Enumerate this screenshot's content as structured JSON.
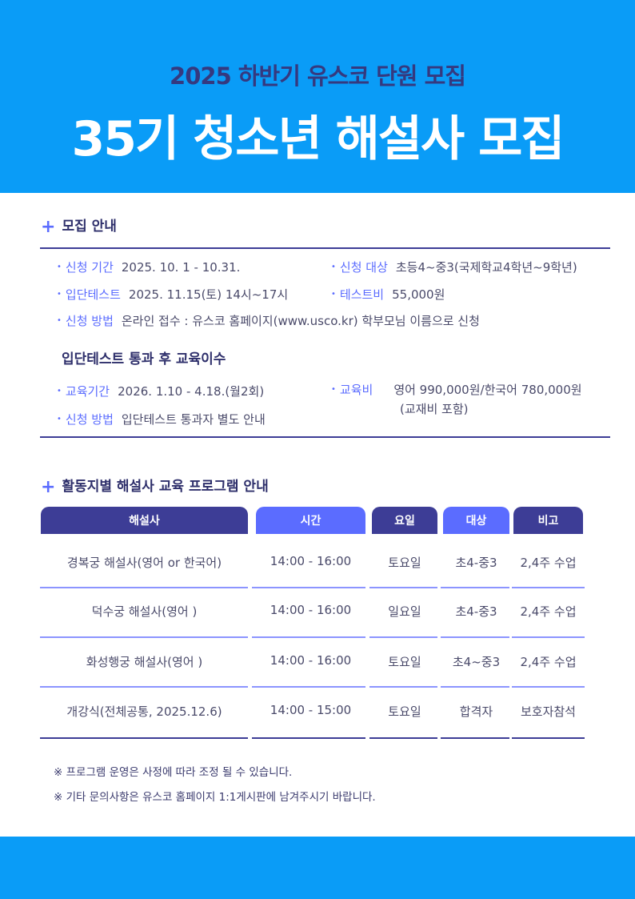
{
  "header": {
    "subtitle": "2025 하반기  유스코 단원 모집",
    "title": "35기 청소년 해설사 모집"
  },
  "recruit": {
    "heading": "모집 안내",
    "items": [
      {
        "label": "신청 기간",
        "value": "2025. 10. 1 - 10.31."
      },
      {
        "label": "신청 대상",
        "value": "초등4~중3(국제학교4학년~9학년)"
      },
      {
        "label": "입단테스트",
        "value": "2025. 11.15(토) 14시~17시"
      },
      {
        "label": "테스트비",
        "value": "55,000원"
      },
      {
        "label": "신청 방법",
        "value": "온라인 접수 : 유스코 홈페이지(www.usco.kr) 학부모님 이름으로 신청"
      }
    ],
    "sub_heading": "입단테스트 통과 후 교육이수",
    "edu": [
      {
        "label": "교육기간",
        "value": "2026. 1.10 - 4.18.(월2회)"
      },
      {
        "label": "교육비",
        "value": "영어 990,000원/한국어 780,000원",
        "value2": "(교재비 포함)"
      },
      {
        "label": "신청 방법",
        "value": "입단테스트 통과자 별도 안내"
      }
    ]
  },
  "program": {
    "heading": "활동지별 해설사 교육 프로그램 안내",
    "columns": [
      "해설사",
      "시간",
      "요일",
      "대상",
      "비고"
    ],
    "rows": [
      [
        "경복궁 해설사(영어 or 한국어)",
        "14:00 - 16:00",
        "토요일",
        "초4-중3",
        "2,4주 수업"
      ],
      [
        "덕수궁 해설사(영어 )",
        "14:00 - 16:00",
        "일요일",
        "초4-중3",
        "2,4주 수업"
      ],
      [
        "화성행궁 해설사(영어 )",
        "14:00 - 16:00",
        "토요일",
        "초4~중3",
        "2,4주 수업"
      ],
      [
        "개강식(전체공통, 2025.12.6)",
        "14:00 - 15:00",
        "토요일",
        "합격자",
        "보호자참석"
      ]
    ]
  },
  "notes": [
    "※ 프로그램 운영은 사정에 따라 조정 될 수 있습니다.",
    "※ 기타 문의사항은 유스코 홈페이지 1:1게시판에 남겨주시기 바랍니다."
  ],
  "colors": {
    "brand_blue": "#0a9cf7",
    "navy": "#3d3d96",
    "accent": "#5b6cff"
  }
}
